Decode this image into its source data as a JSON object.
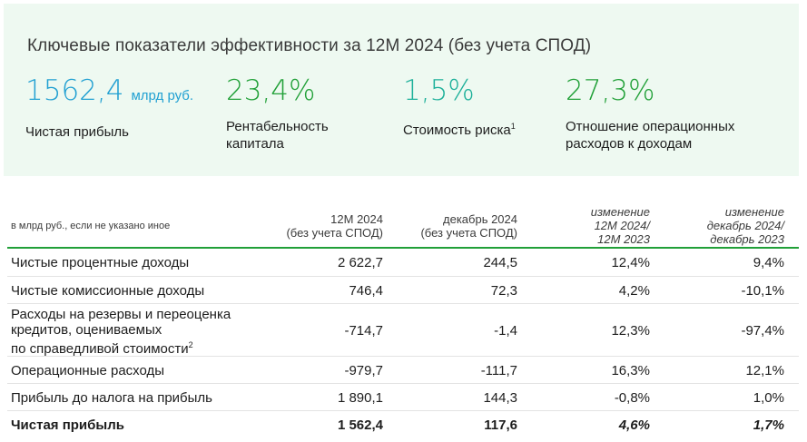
{
  "kpi_panel": {
    "title": "Ключевые показатели эффективности за 12М 2024 (без учета СПОД)",
    "items": [
      {
        "value": "1562,4",
        "unit": "млрд руб.",
        "label": "Чистая прибыль",
        "color": "#21a0d2"
      },
      {
        "value": "23,4%",
        "label": "Рентабельность капитала",
        "color": "#21a038"
      },
      {
        "value": "1,5%",
        "label": "Стоимость риска",
        "footnote": "1",
        "color": "#1db09a"
      },
      {
        "value": "27,3%",
        "label": "Отношение операционных расходов к доходам",
        "color": "#21a038"
      }
    ]
  },
  "table": {
    "headers": [
      "в млрд руб., если не указано иное",
      "12М 2024\n(без учета СПОД)",
      "декабрь 2024\n(без учета СПОД)",
      "изменение\n12М 2024/\n12М 2023",
      "изменение\nдекабрь 2024/\nдекабрь 2023"
    ],
    "rows": [
      {
        "name": "Чистые процентные доходы",
        "v1": "2 622,7",
        "v2": "244,5",
        "v3": "12,4%",
        "v4": "9,4%"
      },
      {
        "name": "Чистые комиссионные доходы",
        "v1": "746,4",
        "v2": "72,3",
        "v3": "4,2%",
        "v4": "-10,1%"
      },
      {
        "name": "Расходы на резервы и переоценка\nкредитов, оцениваемых\nпо справедливой стоимости",
        "footnote": "2",
        "v1": "-714,7",
        "v2": "-1,4",
        "v3": "12,3%",
        "v4": "-97,4%"
      },
      {
        "name": "Операционные расходы",
        "v1": "-979,7",
        "v2": "-111,7",
        "v3": "16,3%",
        "v4": "12,1%"
      },
      {
        "name": "Прибыль до налога на прибыль",
        "v1": "1 890,1",
        "v2": "144,3",
        "v3": "-0,8%",
        "v4": "1,0%"
      },
      {
        "name": "Чистая прибыль",
        "v1": "1 562,4",
        "v2": "117,6",
        "v3": "4,6%",
        "v4": "1,7%"
      }
    ]
  }
}
